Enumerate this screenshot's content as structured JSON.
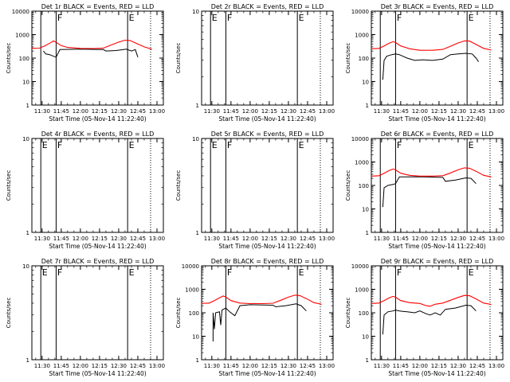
{
  "figure": {
    "x_tick_labels": [
      "11:30",
      "11:45",
      "12:00",
      "12:15",
      "12:30",
      "12:45",
      "13:00"
    ],
    "x_axis_label": "Start Time (05-Nov-14 11:22:40)",
    "y_axis_label": "Counts/sec",
    "colors": {
      "events": "#000000",
      "lld": "#ff0000",
      "axes": "#000000"
    }
  },
  "chart_data": [
    {
      "type": "line",
      "title": "Det 1r BLACK = Events, RED = LLD",
      "xlim": [
        "11:22",
        "13:05"
      ],
      "ylim": [
        1,
        10000
      ],
      "yscale": "log",
      "y_tick_labels": [
        "1",
        "10",
        "100",
        "1000",
        "10000"
      ],
      "markers": [
        {
          "x": "11:29",
          "label": ""
        },
        {
          "x": "11:41",
          "label": "F"
        },
        {
          "x": "12:37",
          "label": "E"
        }
      ],
      "dotted_lines": [
        "12:55"
      ],
      "series": [
        {
          "name": "Events",
          "color": "#000000",
          "points": [
            [
              "11:31",
              200
            ],
            [
              "11:33",
              150
            ],
            [
              "11:36",
              140
            ],
            [
              "11:39",
              120
            ],
            [
              "11:41",
              110
            ],
            [
              "11:44",
              230
            ],
            [
              "12:00",
              240
            ],
            [
              "12:18",
              230
            ],
            [
              "12:20",
              200
            ],
            [
              "12:28",
              210
            ],
            [
              "12:36",
              240
            ],
            [
              "12:40",
              200
            ],
            [
              "12:43",
              230
            ],
            [
              "12:45",
              110
            ]
          ]
        },
        {
          "name": "LLD",
          "color": "#ff0000",
          "points": [
            [
              "11:22",
              260
            ],
            [
              "11:28",
              265
            ],
            [
              "11:32",
              330
            ],
            [
              "11:36",
              430
            ],
            [
              "11:39",
              540
            ],
            [
              "11:41",
              470
            ],
            [
              "11:45",
              340
            ],
            [
              "11:50",
              285
            ],
            [
              "12:00",
              260
            ],
            [
              "12:10",
              255
            ],
            [
              "12:18",
              265
            ],
            [
              "12:24",
              360
            ],
            [
              "12:30",
              480
            ],
            [
              "12:35",
              580
            ],
            [
              "12:39",
              560
            ],
            [
              "12:44",
              420
            ],
            [
              "12:50",
              300
            ],
            [
              "12:56",
              240
            ]
          ]
        }
      ]
    },
    {
      "type": "line",
      "title": "Det 2r BLACK = Events, RED = LLD",
      "xlim": [
        "11:22",
        "13:05"
      ],
      "ylim": [
        1,
        10
      ],
      "yscale": "log",
      "y_tick_labels": [
        "1",
        "10"
      ],
      "markers": [
        {
          "x": "11:29",
          "label": "E"
        },
        {
          "x": "11:41",
          "label": "F"
        },
        {
          "x": "12:37",
          "label": "E"
        }
      ],
      "dotted_lines": [
        "12:55"
      ],
      "series": []
    },
    {
      "type": "line",
      "title": "Det 3r BLACK = Events, RED = LLD",
      "xlim": [
        "11:22",
        "13:05"
      ],
      "ylim": [
        1,
        10000
      ],
      "yscale": "log",
      "y_tick_labels": [
        "1",
        "10",
        "100",
        "1000",
        "10000"
      ],
      "markers": [
        {
          "x": "11:29",
          "label": ""
        },
        {
          "x": "11:41",
          "label": "F"
        },
        {
          "x": "12:37",
          "label": "E"
        }
      ],
      "dotted_lines": [
        "12:55"
      ],
      "series": [
        {
          "name": "Events",
          "color": "#000000",
          "points": [
            [
              "11:31",
              12
            ],
            [
              "11:32",
              80
            ],
            [
              "11:34",
              120
            ],
            [
              "11:38",
              140
            ],
            [
              "11:41",
              150
            ],
            [
              "11:44",
              140
            ],
            [
              "11:50",
              100
            ],
            [
              "11:56",
              80
            ],
            [
              "12:02",
              85
            ],
            [
              "12:10",
              80
            ],
            [
              "12:18",
              90
            ],
            [
              "12:24",
              140
            ],
            [
              "12:30",
              150
            ],
            [
              "12:36",
              160
            ],
            [
              "12:41",
              150
            ],
            [
              "12:44",
              100
            ],
            [
              "12:46",
              70
            ]
          ]
        },
        {
          "name": "LLD",
          "color": "#ff0000",
          "points": [
            [
              "11:22",
              250
            ],
            [
              "11:28",
              260
            ],
            [
              "11:32",
              330
            ],
            [
              "11:36",
              430
            ],
            [
              "11:39",
              500
            ],
            [
              "11:41",
              460
            ],
            [
              "11:45",
              330
            ],
            [
              "11:52",
              250
            ],
            [
              "12:00",
              215
            ],
            [
              "12:10",
              215
            ],
            [
              "12:18",
              235
            ],
            [
              "12:24",
              320
            ],
            [
              "12:30",
              440
            ],
            [
              "12:35",
              540
            ],
            [
              "12:39",
              530
            ],
            [
              "12:44",
              380
            ],
            [
              "12:50",
              260
            ],
            [
              "12:56",
              220
            ]
          ]
        }
      ]
    },
    {
      "type": "line",
      "title": "Det 4r BLACK = Events, RED = LLD",
      "xlim": [
        "11:22",
        "13:05"
      ],
      "ylim": [
        1,
        10
      ],
      "yscale": "log",
      "y_tick_labels": [
        "1",
        "10"
      ],
      "markers": [
        {
          "x": "11:29",
          "label": "E"
        },
        {
          "x": "11:41",
          "label": "F"
        },
        {
          "x": "12:37",
          "label": "E"
        }
      ],
      "dotted_lines": [
        "12:55"
      ],
      "series": []
    },
    {
      "type": "line",
      "title": "Det 5r BLACK = Events, RED = LLD",
      "xlim": [
        "11:22",
        "13:05"
      ],
      "ylim": [
        1,
        10
      ],
      "yscale": "log",
      "y_tick_labels": [
        "1",
        "10"
      ],
      "markers": [
        {
          "x": "11:29",
          "label": "E"
        },
        {
          "x": "11:41",
          "label": "F"
        },
        {
          "x": "12:37",
          "label": "E"
        }
      ],
      "dotted_lines": [
        "12:55"
      ],
      "series": []
    },
    {
      "type": "line",
      "title": "Det 6r BLACK = Events, RED = LLD",
      "xlim": [
        "11:22",
        "13:05"
      ],
      "ylim": [
        1,
        10000
      ],
      "yscale": "log",
      "y_tick_labels": [
        "1",
        "10",
        "100",
        "1000",
        "10000"
      ],
      "markers": [
        {
          "x": "11:29",
          "label": ""
        },
        {
          "x": "11:41",
          "label": "F"
        },
        {
          "x": "12:37",
          "label": "E"
        }
      ],
      "dotted_lines": [
        "12:55"
      ],
      "series": [
        {
          "name": "Events",
          "color": "#000000",
          "points": [
            [
              "11:31",
              12
            ],
            [
              "11:32",
              80
            ],
            [
              "11:35",
              100
            ],
            [
              "11:39",
              110
            ],
            [
              "11:41",
              120
            ],
            [
              "11:44",
              230
            ],
            [
              "12:00",
              235
            ],
            [
              "12:18",
              220
            ],
            [
              "12:20",
              150
            ],
            [
              "12:28",
              170
            ],
            [
              "12:36",
              210
            ],
            [
              "12:40",
              200
            ],
            [
              "12:44",
              120
            ]
          ]
        },
        {
          "name": "LLD",
          "color": "#ff0000",
          "points": [
            [
              "11:22",
              250
            ],
            [
              "11:28",
              260
            ],
            [
              "11:32",
              330
            ],
            [
              "11:36",
              430
            ],
            [
              "11:39",
              500
            ],
            [
              "11:41",
              460
            ],
            [
              "11:45",
              330
            ],
            [
              "11:52",
              270
            ],
            [
              "12:00",
              250
            ],
            [
              "12:10",
              250
            ],
            [
              "12:18",
              260
            ],
            [
              "12:24",
              340
            ],
            [
              "12:30",
              460
            ],
            [
              "12:35",
              560
            ],
            [
              "12:39",
              540
            ],
            [
              "12:44",
              400
            ],
            [
              "12:50",
              270
            ],
            [
              "12:56",
              230
            ]
          ]
        }
      ]
    },
    {
      "type": "line",
      "title": "Det 7r BLACK = Events, RED = LLD",
      "xlim": [
        "11:22",
        "13:05"
      ],
      "ylim": [
        1,
        10
      ],
      "yscale": "log",
      "y_tick_labels": [
        "1",
        "10"
      ],
      "markers": [
        {
          "x": "11:29",
          "label": "E"
        },
        {
          "x": "11:41",
          "label": "F"
        },
        {
          "x": "12:37",
          "label": "E"
        }
      ],
      "dotted_lines": [
        "12:55"
      ],
      "series": []
    },
    {
      "type": "line",
      "title": "Det 8r BLACK = Events, RED = LLD",
      "xlim": [
        "11:22",
        "13:05"
      ],
      "ylim": [
        1,
        10000
      ],
      "yscale": "log",
      "y_tick_labels": [
        "1",
        "10",
        "100",
        "1000",
        "10000"
      ],
      "markers": [
        {
          "x": "11:41",
          "label": "F"
        },
        {
          "x": "12:37",
          "label": "E"
        }
      ],
      "dotted_lines": [
        "12:55"
      ],
      "series": [
        {
          "name": "Events",
          "color": "#000000",
          "points": [
            [
              "11:31",
              6
            ],
            [
              "11:31",
              100
            ],
            [
              "11:32",
              20
            ],
            [
              "11:33",
              100
            ],
            [
              "11:36",
              110
            ],
            [
              "11:37",
              30
            ],
            [
              "11:38",
              130
            ],
            [
              "11:41",
              160
            ],
            [
              "11:44",
              110
            ],
            [
              "11:48",
              75
            ],
            [
              "11:52",
              200
            ],
            [
              "12:00",
              220
            ],
            [
              "12:18",
              210
            ],
            [
              "12:20",
              180
            ],
            [
              "12:28",
              200
            ],
            [
              "12:36",
              240
            ],
            [
              "12:40",
              200
            ],
            [
              "12:44",
              120
            ]
          ]
        },
        {
          "name": "LLD",
          "color": "#ff0000",
          "points": [
            [
              "11:22",
              250
            ],
            [
              "11:28",
              260
            ],
            [
              "11:32",
              330
            ],
            [
              "11:36",
              430
            ],
            [
              "11:39",
              520
            ],
            [
              "11:41",
              470
            ],
            [
              "11:45",
              330
            ],
            [
              "11:52",
              260
            ],
            [
              "12:00",
              245
            ],
            [
              "12:10",
              245
            ],
            [
              "12:18",
              255
            ],
            [
              "12:24",
              340
            ],
            [
              "12:30",
              460
            ],
            [
              "12:35",
              560
            ],
            [
              "12:39",
              540
            ],
            [
              "12:44",
              400
            ],
            [
              "12:50",
              270
            ],
            [
              "12:56",
              230
            ]
          ]
        }
      ]
    },
    {
      "type": "line",
      "title": "Det 9r BLACK = Events, RED = LLD",
      "xlim": [
        "11:22",
        "13:05"
      ],
      "ylim": [
        1,
        10000
      ],
      "yscale": "log",
      "y_tick_labels": [
        "1",
        "10",
        "100",
        "1000",
        "10000"
      ],
      "markers": [
        {
          "x": "11:29",
          "label": ""
        },
        {
          "x": "11:41",
          "label": "F"
        },
        {
          "x": "12:37",
          "label": "E"
        }
      ],
      "dotted_lines": [
        "12:55"
      ],
      "series": [
        {
          "name": "Events",
          "color": "#000000",
          "points": [
            [
              "11:31",
              12
            ],
            [
              "11:32",
              80
            ],
            [
              "11:35",
              110
            ],
            [
              "11:39",
              120
            ],
            [
              "11:41",
              130
            ],
            [
              "11:44",
              120
            ],
            [
              "11:50",
              110
            ],
            [
              "11:56",
              100
            ],
            [
              "12:00",
              120
            ],
            [
              "12:05",
              90
            ],
            [
              "12:08",
              80
            ],
            [
              "12:12",
              100
            ],
            [
              "12:16",
              80
            ],
            [
              "12:20",
              140
            ],
            [
              "12:28",
              160
            ],
            [
              "12:36",
              210
            ],
            [
              "12:40",
              200
            ],
            [
              "12:44",
              120
            ]
          ]
        },
        {
          "name": "LLD",
          "color": "#ff0000",
          "points": [
            [
              "11:22",
              250
            ],
            [
              "11:28",
              260
            ],
            [
              "11:32",
              330
            ],
            [
              "11:36",
              430
            ],
            [
              "11:39",
              500
            ],
            [
              "11:41",
              460
            ],
            [
              "11:45",
              330
            ],
            [
              "11:52",
              270
            ],
            [
              "12:00",
              250
            ],
            [
              "12:05",
              200
            ],
            [
              "12:08",
              190
            ],
            [
              "12:12",
              230
            ],
            [
              "12:18",
              260
            ],
            [
              "12:24",
              340
            ],
            [
              "12:30",
              450
            ],
            [
              "12:35",
              550
            ],
            [
              "12:39",
              530
            ],
            [
              "12:44",
              390
            ],
            [
              "12:50",
              260
            ],
            [
              "12:56",
              225
            ]
          ]
        }
      ]
    }
  ]
}
